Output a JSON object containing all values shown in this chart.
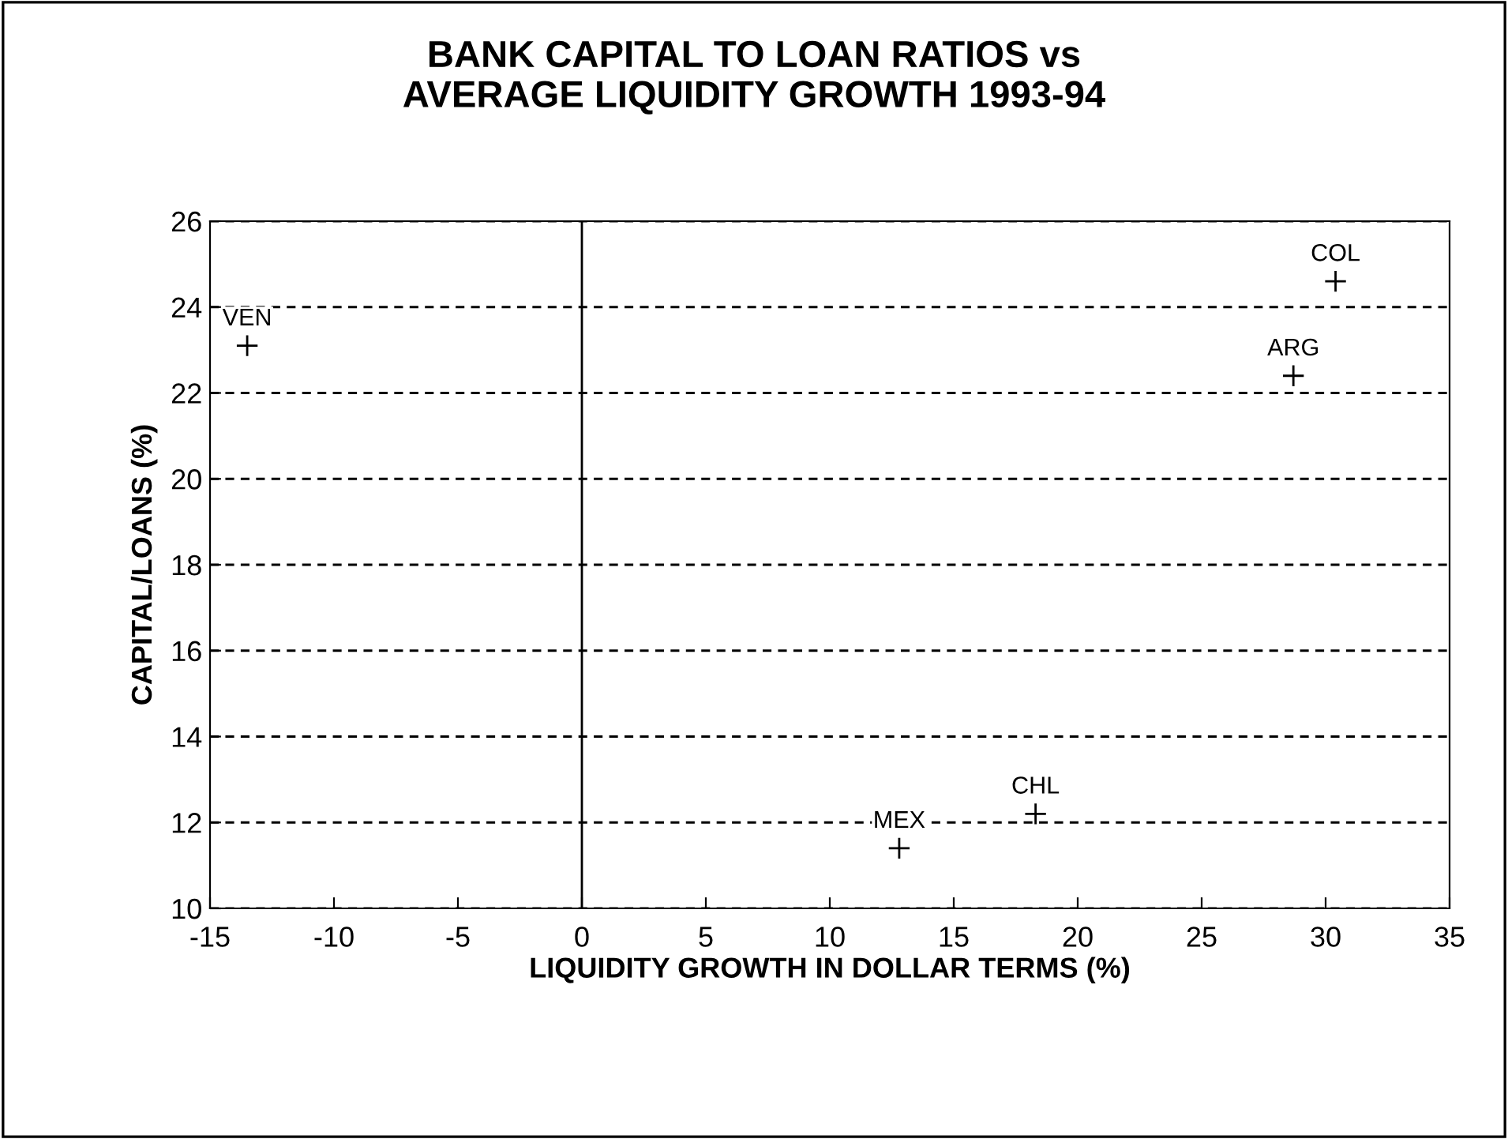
{
  "chart_data": {
    "type": "scatter",
    "title": "BANK CAPITAL TO LOAN RATIOS vs\nAVERAGE LIQUIDITY GROWTH 1993-94",
    "xlabel": "LIQUIDITY GROWTH IN DOLLAR TERMS (%)",
    "ylabel": "CAPITAL/LOANS (%)",
    "x": [
      -13.5,
      30.4,
      28.7,
      12.8,
      18.3
    ],
    "values": [
      23.1,
      24.6,
      22.4,
      11.4,
      12.2
    ],
    "color": "#000000",
    "marker": "cross",
    "annotations": [
      {
        "text": "VEN",
        "x": -13.5,
        "y": 23.1
      },
      {
        "text": "COL",
        "x": 30.4,
        "y": 24.6
      },
      {
        "text": "ARG",
        "x": 28.7,
        "y": 22.4
      },
      {
        "text": "MEX",
        "x": 12.8,
        "y": 11.4
      },
      {
        "text": "CHL",
        "x": 18.3,
        "y": 12.2
      }
    ],
    "ref_lines": [
      {
        "axis": "x",
        "value": 0,
        "color": "#000000",
        "line_style": "solid"
      }
    ],
    "xlim": [
      -15,
      35
    ],
    "xticks": [
      -15,
      -10,
      -5,
      0,
      5,
      10,
      15,
      20,
      25,
      30,
      35
    ],
    "ylim": [
      10,
      26
    ],
    "yticks": [
      10,
      12,
      14,
      16,
      18,
      20,
      22,
      24,
      26
    ],
    "grid": "y",
    "legend": false
  }
}
